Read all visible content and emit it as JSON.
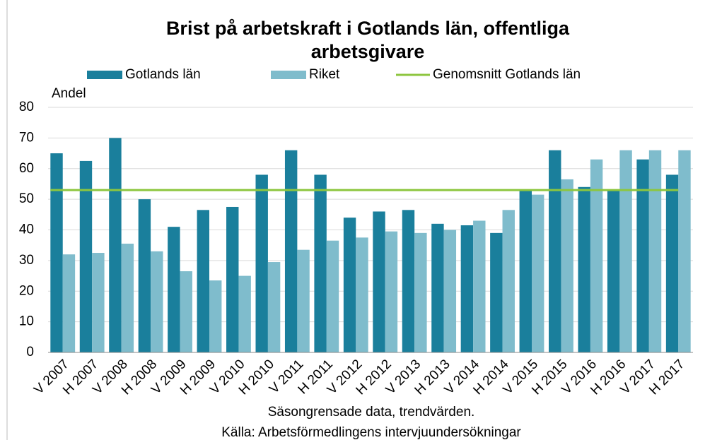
{
  "chart_data": {
    "type": "bar",
    "title": [
      "Brist på arbetskraft i Gotlands län, offentliga",
      "arbetsgivare"
    ],
    "y_label": "Andel",
    "notes": [
      "Säsongrensade data, trendvärden.",
      "Källa: Arbetsförmedlingens intervjuundersökningar"
    ],
    "categories": [
      "V 2007",
      "H 2007",
      "V 2008",
      "H 2008",
      "V 2009",
      "H 2009",
      "V 2010",
      "H 2010",
      "V 2011",
      "H 2011",
      "V 2012",
      "H 2012",
      "V 2013",
      "H 2013",
      "V 2014",
      "H 2014",
      "V 2015",
      "H 2015",
      "V 2016",
      "H 2016",
      "V 2017",
      "H 2017"
    ],
    "series": [
      {
        "name": "Gotlands län",
        "color": "#1a7f9c",
        "values": [
          65,
          62.5,
          70,
          50,
          41,
          46.5,
          47.5,
          58,
          66,
          58,
          44,
          46,
          46.5,
          42,
          41.5,
          39,
          53,
          66,
          54,
          53,
          63,
          58
        ]
      },
      {
        "name": "Riket",
        "color": "#7fbccc",
        "values": [
          32,
          32.5,
          35.5,
          33,
          26.5,
          23.5,
          25,
          29.5,
          33.5,
          36.5,
          37.5,
          39.5,
          39,
          40,
          43,
          46.5,
          51.5,
          56.5,
          63,
          66,
          66,
          66
        ]
      }
    ],
    "average": {
      "name": "Genomsnitt Gotlands län",
      "color": "#8dc63f",
      "value": 53
    },
    "ylim": [
      0,
      80
    ],
    "yticks": [
      0,
      10,
      20,
      30,
      40,
      50,
      60,
      70,
      80
    ],
    "grid": true
  }
}
